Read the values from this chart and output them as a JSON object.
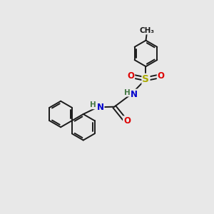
{
  "bg_color": "#e8e8e8",
  "bond_color": "#1a1a1a",
  "bond_width": 1.4,
  "atom_colors": {
    "N": "#0000cc",
    "O": "#dd0000",
    "S": "#aaaa00",
    "H": "#447744",
    "C": "#1a1a1a"
  },
  "font_size_atom": 8.5,
  "font_size_H": 7.5,
  "ring_r": 0.62,
  "dbo": 0.08
}
